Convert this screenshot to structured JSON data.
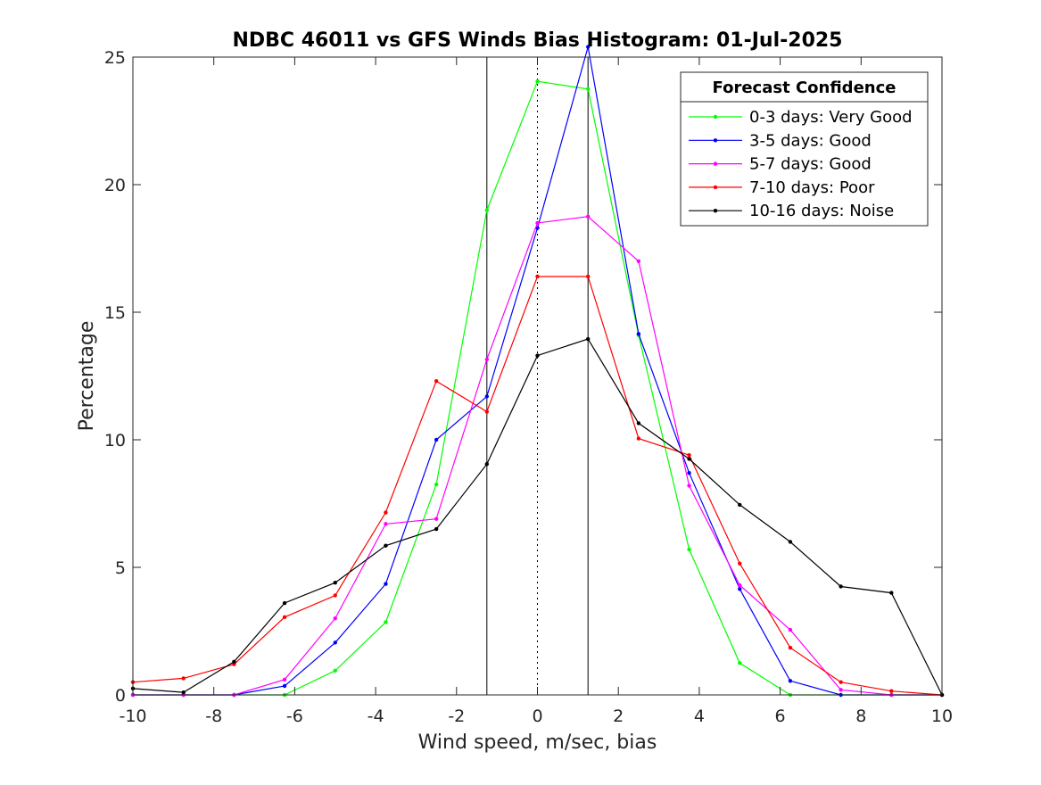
{
  "chart_data": {
    "type": "line",
    "title": "NDBC 46011 vs GFS Winds Bias Histogram: 01-Jul-2025",
    "xlabel": "Wind speed, m/sec, bias",
    "ylabel": "Percentage",
    "xlim": [
      -10,
      10
    ],
    "ylim": [
      0,
      25
    ],
    "xticks": [
      -10,
      -8,
      -6,
      -4,
      -2,
      0,
      2,
      4,
      6,
      8,
      10
    ],
    "yticks": [
      0,
      5,
      10,
      15,
      20,
      25
    ],
    "vertical_lines": [
      {
        "x": -1.25,
        "style": "solid"
      },
      {
        "x": 0,
        "style": "dotted"
      },
      {
        "x": 1.25,
        "style": "solid"
      }
    ],
    "legend": {
      "title": "Forecast Confidence",
      "placement": "top-right"
    },
    "x": [
      -10,
      -8.75,
      -7.5,
      -6.25,
      -5,
      -3.75,
      -2.5,
      -1.25,
      0,
      1.25,
      2.5,
      3.75,
      5,
      6.25,
      7.5,
      8.75,
      10
    ],
    "series": [
      {
        "name": "0-3 days: Very Good",
        "color": "#00ff00",
        "values": [
          0,
          0,
          0,
          0,
          0.95,
          2.85,
          8.25,
          19.0,
          24.05,
          23.75,
          14.1,
          5.7,
          1.25,
          0,
          0,
          0,
          0
        ]
      },
      {
        "name": "3-5 days: Good",
        "color": "#0000ff",
        "values": [
          0,
          0,
          0,
          0.35,
          2.05,
          4.35,
          10.0,
          11.7,
          18.3,
          25.4,
          14.15,
          8.7,
          4.15,
          0.55,
          0,
          0,
          0
        ]
      },
      {
        "name": "5-7 days: Good",
        "color": "#ff00ff",
        "values": [
          0,
          0,
          0,
          0.6,
          3.0,
          6.7,
          6.9,
          13.15,
          18.5,
          18.75,
          17.0,
          8.2,
          4.3,
          2.55,
          0.2,
          0,
          0
        ]
      },
      {
        "name": "7-10 days: Poor",
        "color": "#ff0000",
        "values": [
          0.5,
          0.65,
          1.2,
          3.05,
          3.9,
          7.15,
          12.3,
          11.1,
          16.4,
          16.4,
          10.05,
          9.4,
          5.15,
          1.85,
          0.5,
          0.15,
          0
        ]
      },
      {
        "name": "10-16 days: Noise",
        "color": "#000000",
        "values": [
          0.25,
          0.1,
          1.3,
          3.6,
          4.4,
          5.85,
          6.5,
          9.05,
          13.3,
          13.95,
          10.65,
          9.25,
          7.45,
          6.0,
          4.25,
          4.0,
          0
        ]
      }
    ]
  }
}
